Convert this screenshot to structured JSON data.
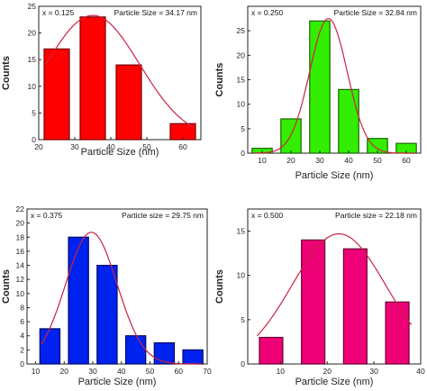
{
  "chart_data": [
    {
      "type": "bar",
      "panel": "top-left",
      "x_value_label": "x = 0.125",
      "size_label": "Particle Size = 34.17 nm",
      "xlabel": "Particle Size (nm)",
      "ylabel": "Counts",
      "x": [
        25,
        35,
        45,
        60
      ],
      "values": [
        17,
        23,
        14,
        3
      ],
      "bar_width": 7,
      "xlim": [
        20,
        65
      ],
      "ylim": [
        0,
        25
      ],
      "xticks": [
        20,
        30,
        40,
        50,
        60
      ],
      "yticks": [
        0,
        5,
        10,
        15,
        20,
        25
      ],
      "fit_curve": {
        "peak_x": 35,
        "peak_y": 23.3,
        "width": 13
      },
      "bar_color": "#ff0000",
      "bar_edge": "#7a0000",
      "curve_color": "#cc2244"
    },
    {
      "type": "bar",
      "panel": "top-right",
      "x_value_label": "x = 0.250",
      "size_label": "Particle Size = 32.84 nm",
      "xlabel": "Particle Size (nm)",
      "ylabel": "Counts",
      "x": [
        10,
        20,
        30,
        40,
        50,
        60
      ],
      "values": [
        1,
        7,
        27,
        13,
        3,
        2
      ],
      "bar_width": 7,
      "xlim": [
        5,
        65
      ],
      "ylim": [
        0,
        30
      ],
      "xticks": [
        10,
        20,
        30,
        40,
        50,
        60
      ],
      "yticks": [
        0,
        5,
        10,
        15,
        20,
        25
      ],
      "fit_curve": {
        "peak_x": 33,
        "peak_y": 27.5,
        "width": 6.5
      },
      "bar_color": "#33ee00",
      "bar_edge": "#1a6600",
      "curve_color": "#cc2244"
    },
    {
      "type": "bar",
      "panel": "bottom-left",
      "x_value_label": "x = 0.375",
      "size_label": "Particle size = 29.75 nm",
      "xlabel": "Particle Size (nm)",
      "ylabel": "Counts",
      "x": [
        15,
        25,
        35,
        45,
        55,
        65
      ],
      "values": [
        5,
        18,
        14,
        4,
        3,
        2
      ],
      "bar_width": 7,
      "xlim": [
        7,
        70
      ],
      "ylim": [
        0,
        22
      ],
      "xticks": [
        10,
        20,
        30,
        40,
        50,
        60,
        70
      ],
      "yticks": [
        0,
        2,
        4,
        6,
        8,
        10,
        12,
        14,
        16,
        18,
        20,
        22
      ],
      "fit_curve": {
        "peak_x": 29.5,
        "peak_y": 18.7,
        "width": 9
      },
      "bar_color": "#0022ee",
      "bar_edge": "#000a66",
      "curve_color": "#cc2244"
    },
    {
      "type": "bar",
      "panel": "bottom-right",
      "x_value_label": "x = 0.500",
      "size_label": "Particle size = 22.18 nm",
      "xlabel": "Particle Size (nm)",
      "ylabel": "Counts",
      "x": [
        8,
        17,
        26,
        35
      ],
      "values": [
        3,
        14,
        13,
        7
      ],
      "bar_width": 5,
      "xlim": [
        3,
        40
      ],
      "ylim": [
        0,
        17.5
      ],
      "xticks": [
        10,
        20,
        30,
        40
      ],
      "yticks": [
        0,
        5,
        10,
        15
      ],
      "fit_curve": {
        "peak_x": 22.5,
        "peak_y": 14.7,
        "width": 10
      },
      "bar_color": "#ee0077",
      "bar_edge": "#660033",
      "curve_color": "#cc2244"
    }
  ]
}
